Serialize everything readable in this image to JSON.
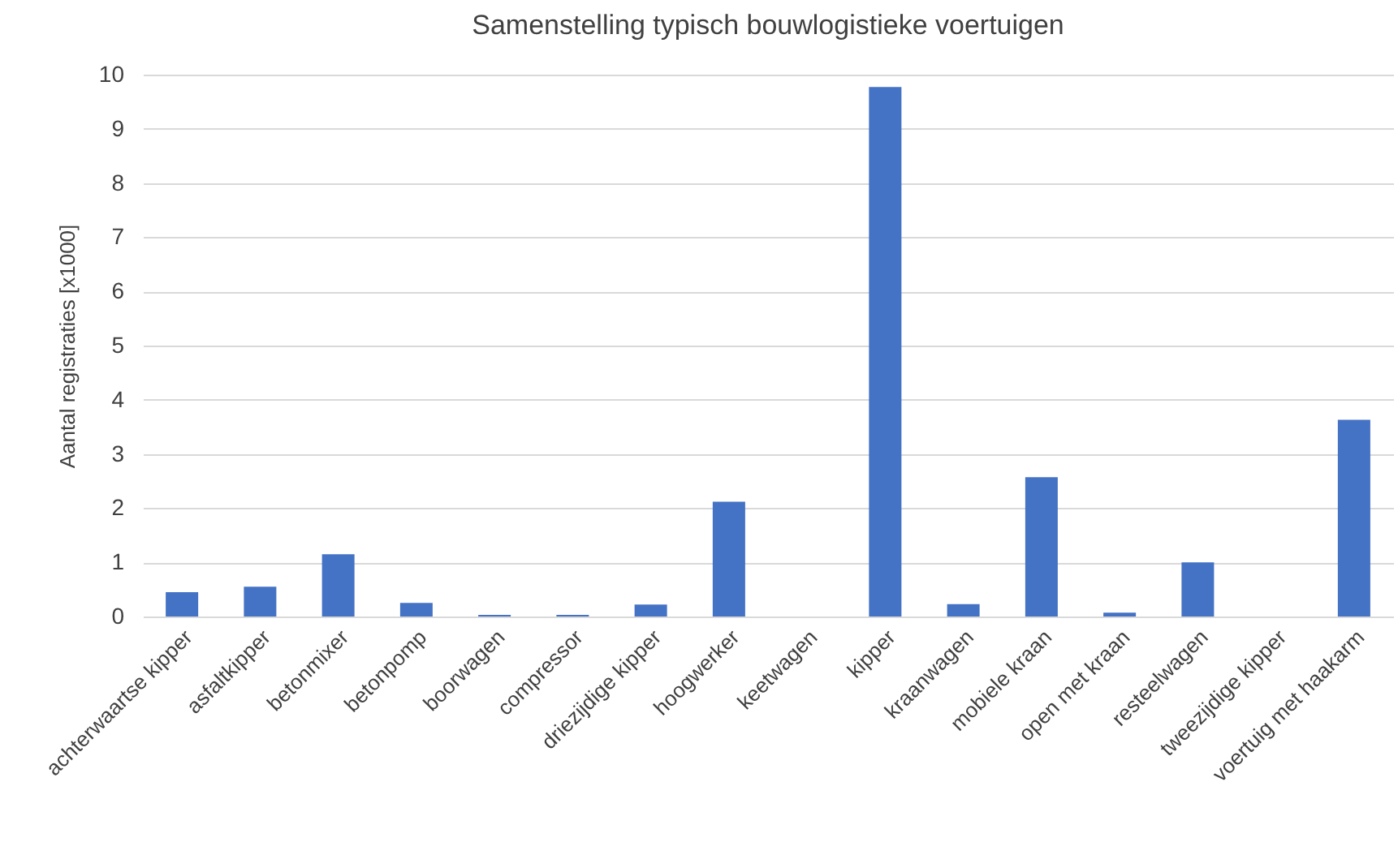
{
  "chart_data": {
    "type": "bar",
    "title": "Samenstelling typisch bouwlogistieke voertuigen",
    "ylabel": "Aantal registraties [x1000]",
    "categories": [
      "achterwaartse kipper",
      "asfaltkipper",
      "betonmixer",
      "betonpomp",
      "boorwagen",
      "compressor",
      "driezijdige kipper",
      "hoogwerker",
      "keetwagen",
      "kipper",
      "kraanwagen",
      "mobiele kraan",
      "open met kraan",
      "resteelwagen",
      "tweezijdige kipper",
      "voertuig met haakarm"
    ],
    "values": [
      0.45,
      0.55,
      1.15,
      0.25,
      0.03,
      0.03,
      0.22,
      2.12,
      0,
      9.77,
      0.23,
      2.57,
      0.07,
      1.0,
      0,
      3.63
    ],
    "color": "#4472c4",
    "ylim": [
      0,
      10
    ],
    "yticks": [
      0,
      1,
      2,
      3,
      4,
      5,
      6,
      7,
      8,
      9,
      10
    ],
    "grid": "y"
  }
}
